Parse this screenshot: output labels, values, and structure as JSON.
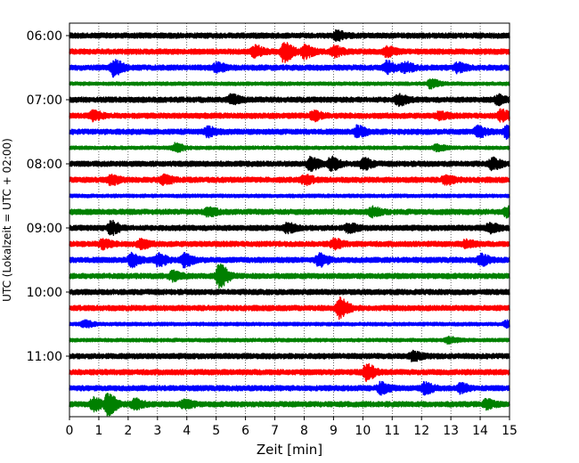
{
  "chart_data": {
    "type": "line",
    "subtype": "helicorder",
    "xlabel": "Zeit  [min]",
    "ylabel": "UTC (Lokalzeit = UTC + 02:00)",
    "xlim": [
      0,
      15
    ],
    "x_ticks": [
      "0",
      "1",
      "2",
      "3",
      "4",
      "5",
      "6",
      "7",
      "8",
      "9",
      "10",
      "11",
      "12",
      "13",
      "14",
      "15"
    ],
    "y_ticks": [
      "06:00",
      "07:00",
      "08:00",
      "09:00",
      "10:00",
      "11:00"
    ],
    "x_grid": "dotted vertical lines at each minute",
    "line_colors": [
      "#000000",
      "#ff0000",
      "#0000ff",
      "#008000"
    ],
    "rows": [
      {
        "start": "06:00",
        "color": "#000000",
        "amp": 3,
        "events": [
          {
            "t": 9.1,
            "a": 4
          }
        ]
      },
      {
        "start": "06:15",
        "color": "#ff0000",
        "amp": 3,
        "events": [
          {
            "t": 6.3,
            "a": 6
          },
          {
            "t": 7.3,
            "a": 10
          },
          {
            "t": 8.0,
            "a": 6
          },
          {
            "t": 9.0,
            "a": 5
          },
          {
            "t": 10.8,
            "a": 4
          }
        ]
      },
      {
        "start": "06:30",
        "color": "#0000ff",
        "amp": 3,
        "events": [
          {
            "t": 1.5,
            "a": 8
          },
          {
            "t": 5.0,
            "a": 4
          },
          {
            "t": 10.8,
            "a": 6
          },
          {
            "t": 11.4,
            "a": 5
          },
          {
            "t": 13.2,
            "a": 4
          }
        ]
      },
      {
        "start": "06:45",
        "color": "#008000",
        "amp": 2,
        "events": [
          {
            "t": 12.3,
            "a": 4
          }
        ]
      },
      {
        "start": "07:00",
        "color": "#000000",
        "amp": 3,
        "events": [
          {
            "t": 5.5,
            "a": 4
          },
          {
            "t": 11.2,
            "a": 5
          },
          {
            "t": 14.6,
            "a": 4
          }
        ]
      },
      {
        "start": "07:15",
        "color": "#ff0000",
        "amp": 3,
        "events": [
          {
            "t": 0.8,
            "a": 4
          },
          {
            "t": 8.3,
            "a": 4
          },
          {
            "t": 12.6,
            "a": 3
          },
          {
            "t": 14.7,
            "a": 5
          }
        ]
      },
      {
        "start": "07:30",
        "color": "#0000ff",
        "amp": 3,
        "events": [
          {
            "t": 4.7,
            "a": 4
          },
          {
            "t": 9.8,
            "a": 5
          },
          {
            "t": 13.9,
            "a": 5
          },
          {
            "t": 14.9,
            "a": 6
          }
        ]
      },
      {
        "start": "07:45",
        "color": "#008000",
        "amp": 2,
        "events": [
          {
            "t": 3.6,
            "a": 4
          },
          {
            "t": 12.5,
            "a": 3
          }
        ]
      },
      {
        "start": "08:00",
        "color": "#000000",
        "amp": 3,
        "events": [
          {
            "t": 8.2,
            "a": 6
          },
          {
            "t": 8.9,
            "a": 6
          },
          {
            "t": 10.0,
            "a": 5
          },
          {
            "t": 14.4,
            "a": 5
          }
        ]
      },
      {
        "start": "08:15",
        "color": "#ff0000",
        "amp": 3,
        "events": [
          {
            "t": 1.4,
            "a": 4
          },
          {
            "t": 3.2,
            "a": 4
          },
          {
            "t": 8.0,
            "a": 4
          },
          {
            "t": 12.8,
            "a": 4
          }
        ]
      },
      {
        "start": "08:30",
        "color": "#0000ff",
        "amp": 2,
        "events": []
      },
      {
        "start": "08:45",
        "color": "#008000",
        "amp": 3,
        "events": [
          {
            "t": 4.7,
            "a": 4
          },
          {
            "t": 10.3,
            "a": 4
          },
          {
            "t": 14.9,
            "a": 4
          }
        ]
      },
      {
        "start": "09:00",
        "color": "#000000",
        "amp": 3,
        "events": [
          {
            "t": 1.4,
            "a": 6
          },
          {
            "t": 7.4,
            "a": 4
          },
          {
            "t": 9.5,
            "a": 4
          },
          {
            "t": 14.3,
            "a": 4
          }
        ]
      },
      {
        "start": "09:15",
        "color": "#ff0000",
        "amp": 3,
        "events": [
          {
            "t": 1.1,
            "a": 4
          },
          {
            "t": 2.4,
            "a": 4
          },
          {
            "t": 9.0,
            "a": 4
          },
          {
            "t": 13.5,
            "a": 3
          }
        ]
      },
      {
        "start": "09:30",
        "color": "#0000ff",
        "amp": 3,
        "events": [
          {
            "t": 2.1,
            "a": 6
          },
          {
            "t": 3.0,
            "a": 6
          },
          {
            "t": 3.9,
            "a": 6
          },
          {
            "t": 8.5,
            "a": 6
          },
          {
            "t": 14.0,
            "a": 5
          }
        ]
      },
      {
        "start": "09:45",
        "color": "#008000",
        "amp": 3,
        "events": [
          {
            "t": 5.1,
            "a": 12
          },
          {
            "t": 3.5,
            "a": 4
          }
        ]
      },
      {
        "start": "10:00",
        "color": "#000000",
        "amp": 3,
        "events": []
      },
      {
        "start": "10:15",
        "color": "#ff0000",
        "amp": 3,
        "events": [
          {
            "t": 9.2,
            "a": 10
          }
        ]
      },
      {
        "start": "10:30",
        "color": "#0000ff",
        "amp": 2,
        "events": [
          {
            "t": 0.5,
            "a": 3
          },
          {
            "t": 14.9,
            "a": 3
          }
        ]
      },
      {
        "start": "10:45",
        "color": "#008000",
        "amp": 2,
        "events": [
          {
            "t": 12.9,
            "a": 3
          }
        ]
      },
      {
        "start": "11:00",
        "color": "#000000",
        "amp": 3,
        "events": [
          {
            "t": 11.7,
            "a": 4
          }
        ]
      },
      {
        "start": "11:15",
        "color": "#ff0000",
        "amp": 3,
        "events": [
          {
            "t": 10.1,
            "a": 8
          }
        ]
      },
      {
        "start": "11:30",
        "color": "#0000ff",
        "amp": 3,
        "events": [
          {
            "t": 10.6,
            "a": 5
          },
          {
            "t": 12.1,
            "a": 5
          },
          {
            "t": 13.3,
            "a": 4
          }
        ]
      },
      {
        "start": "11:45",
        "color": "#008000",
        "amp": 3,
        "events": [
          {
            "t": 1.3,
            "a": 11
          },
          {
            "t": 0.8,
            "a": 6
          },
          {
            "t": 2.2,
            "a": 5
          },
          {
            "t": 3.9,
            "a": 4
          },
          {
            "t": 14.2,
            "a": 4
          }
        ]
      }
    ]
  }
}
